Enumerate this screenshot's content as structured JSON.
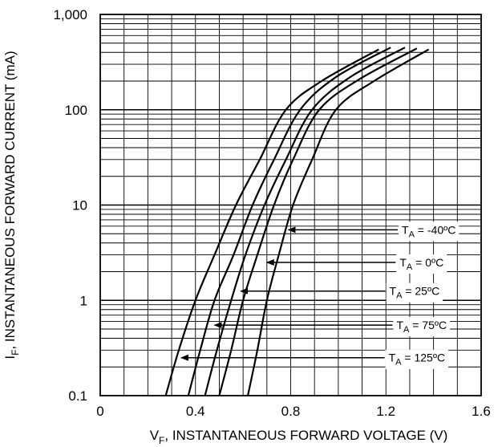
{
  "chart_data": {
    "type": "line",
    "x_scale": "linear",
    "y_scale": "log",
    "xlim": [
      0,
      1.6
    ],
    "ylim": [
      0.1,
      1000
    ],
    "x_ticks": [
      0,
      0.4,
      0.8,
      1.2,
      1.6
    ],
    "x_tick_labels": [
      "0",
      "0.4",
      "0.8",
      "1.2",
      "1.6"
    ],
    "y_ticks": [
      0.1,
      1,
      10,
      100,
      1000
    ],
    "y_tick_labels": [
      "0.1",
      "1",
      "10",
      "100",
      "1,000"
    ],
    "xlabel": {
      "main": "V",
      "sub": "F",
      "rest": ", INSTANTANEOUS FORWARD VOLTAGE (V)"
    },
    "ylabel": {
      "main": "I",
      "sub": "F",
      "rest": ", INSTANTANEOUS FORWARD CURRENT (mA)"
    },
    "grid": true,
    "series": [
      {
        "label": {
          "main": "T",
          "sub": "A",
          "rest": " = 125ºC"
        },
        "points": [
          [
            0.275,
            0.1
          ],
          [
            0.33,
            0.3
          ],
          [
            0.4,
            1
          ],
          [
            0.48,
            3
          ],
          [
            0.57,
            10
          ],
          [
            0.67,
            30
          ],
          [
            0.78,
            100
          ],
          [
            0.93,
            200
          ],
          [
            1.17,
            430
          ]
        ]
      },
      {
        "label": {
          "main": "T",
          "sub": "A",
          "rest": " = 75ºC"
        },
        "points": [
          [
            0.37,
            0.1
          ],
          [
            0.42,
            0.3
          ],
          [
            0.48,
            1
          ],
          [
            0.56,
            3
          ],
          [
            0.64,
            10
          ],
          [
            0.73,
            30
          ],
          [
            0.84,
            100
          ],
          [
            0.99,
            220
          ],
          [
            1.22,
            450
          ]
        ]
      },
      {
        "label": {
          "main": "T",
          "sub": "A",
          "rest": " = 25ºC"
        },
        "points": [
          [
            0.44,
            0.1
          ],
          [
            0.49,
            0.3
          ],
          [
            0.55,
            1
          ],
          [
            0.61,
            3
          ],
          [
            0.69,
            10
          ],
          [
            0.78,
            30
          ],
          [
            0.89,
            100
          ],
          [
            1.05,
            220
          ],
          [
            1.28,
            450
          ]
        ]
      },
      {
        "label": {
          "main": "T",
          "sub": "A",
          "rest": " = 0ºC"
        },
        "points": [
          [
            0.5,
            0.1
          ],
          [
            0.55,
            0.3
          ],
          [
            0.6,
            1
          ],
          [
            0.66,
            3
          ],
          [
            0.73,
            10
          ],
          [
            0.81,
            30
          ],
          [
            0.92,
            100
          ],
          [
            1.09,
            210
          ],
          [
            1.33,
            440
          ]
        ]
      },
      {
        "label": {
          "main": "T",
          "sub": "A",
          "rest": " = -40ºC"
        },
        "points": [
          [
            0.62,
            0.1
          ],
          [
            0.66,
            0.3
          ],
          [
            0.7,
            1
          ],
          [
            0.75,
            3
          ],
          [
            0.81,
            10
          ],
          [
            0.89,
            30
          ],
          [
            0.99,
            100
          ],
          [
            1.15,
            200
          ],
          [
            1.38,
            430
          ]
        ]
      }
    ],
    "annotations": [
      {
        "series": 4,
        "text_x": 1.38,
        "text_y": 5.5,
        "tip_x": 0.79,
        "tip_y": 5.5
      },
      {
        "series": 3,
        "text_x": 1.35,
        "text_y": 2.5,
        "tip_x": 0.7,
        "tip_y": 2.5
      },
      {
        "series": 2,
        "text_x": 1.32,
        "text_y": 1.25,
        "tip_x": 0.59,
        "tip_y": 1.25
      },
      {
        "series": 1,
        "text_x": 1.35,
        "text_y": 0.55,
        "tip_x": 0.48,
        "tip_y": 0.55
      },
      {
        "series": 0,
        "text_x": 1.33,
        "text_y": 0.25,
        "tip_x": 0.34,
        "tip_y": 0.25
      }
    ]
  }
}
